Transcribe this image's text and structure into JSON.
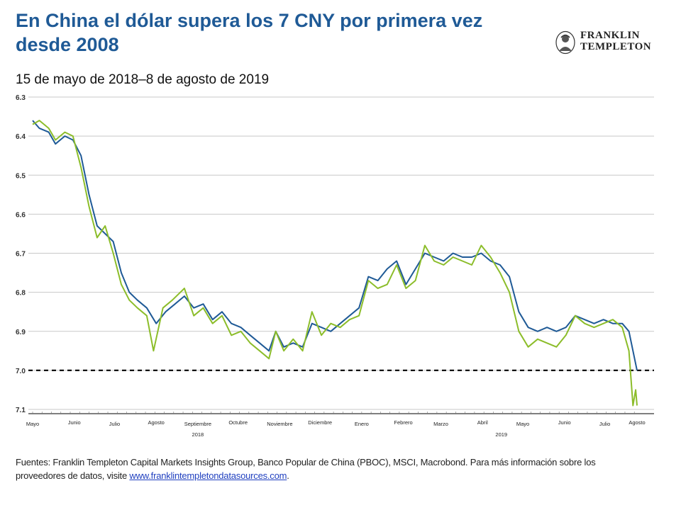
{
  "header": {
    "title": "En China el dólar supera los 7 CNY por primera vez desde 2008",
    "subtitle": "15 de mayo de 2018–8 de agosto de 2019"
  },
  "logo": {
    "line1": "FRANKLIN",
    "line2": "TEMPLETON"
  },
  "footer": {
    "text": "Fuentes: Franklin Templeton Capital Markets Insights Group, Banco Popular de China (PBOC), MSCI, Macrobond. Para más información sobre los proveedores de datos, visite",
    "link": "www.franklintempletondatasources.com",
    "end": "."
  },
  "chart_data": {
    "type": "line",
    "title": "En China el dólar supera los 7 CNY por primera vez desde 2008",
    "subtitle": "15 de mayo de 2018–8 de agosto de 2019",
    "y_inverted": true,
    "ylim": [
      6.3,
      7.1
    ],
    "yticks": [
      6.3,
      6.4,
      6.5,
      6.6,
      6.7,
      6.8,
      6.9,
      7.0,
      7.1
    ],
    "grid": true,
    "reference_line": {
      "y": 7.0,
      "style": "dashed"
    },
    "x_range": [
      "2018-05-15",
      "2019-08-08"
    ],
    "x_tick_labels": [
      {
        "label": "Mayo",
        "date": "2018-05-15"
      },
      {
        "label": "Junio",
        "date": "2018-06-15"
      },
      {
        "label": "Julio",
        "date": "2018-07-15"
      },
      {
        "label": "Agosto",
        "date": "2018-08-15"
      },
      {
        "label": "Septiembre",
        "date": "2018-09-15"
      },
      {
        "label": "Octubre",
        "date": "2018-10-15"
      },
      {
        "label": "Noviembre",
        "date": "2018-11-15"
      },
      {
        "label": "Diciembre",
        "date": "2018-12-15"
      },
      {
        "label": "Enero",
        "date": "2019-01-15"
      },
      {
        "label": "Febrero",
        "date": "2019-02-15"
      },
      {
        "label": "Marzo",
        "date": "2019-03-15"
      },
      {
        "label": "Abril",
        "date": "2019-04-15"
      },
      {
        "label": "Mayo",
        "date": "2019-05-15"
      },
      {
        "label": "Junio",
        "date": "2019-06-15"
      },
      {
        "label": "Julio",
        "date": "2019-07-15"
      },
      {
        "label": "Agosto",
        "date": "2019-08-08"
      }
    ],
    "year_labels": [
      {
        "label": "2018",
        "date": "2018-09-15"
      },
      {
        "label": "2019",
        "date": "2019-04-29"
      }
    ],
    "series": [
      {
        "color": "#1f5a96",
        "points": [
          [
            "2018-05-15",
            6.36
          ],
          [
            "2018-05-20",
            6.38
          ],
          [
            "2018-05-27",
            6.39
          ],
          [
            "2018-06-01",
            6.42
          ],
          [
            "2018-06-08",
            6.4
          ],
          [
            "2018-06-14",
            6.41
          ],
          [
            "2018-06-20",
            6.45
          ],
          [
            "2018-06-26",
            6.55
          ],
          [
            "2018-07-02",
            6.63
          ],
          [
            "2018-07-08",
            6.65
          ],
          [
            "2018-07-14",
            6.67
          ],
          [
            "2018-07-20",
            6.75
          ],
          [
            "2018-07-26",
            6.8
          ],
          [
            "2018-08-01",
            6.82
          ],
          [
            "2018-08-08",
            6.84
          ],
          [
            "2018-08-15",
            6.88
          ],
          [
            "2018-08-22",
            6.85
          ],
          [
            "2018-08-29",
            6.83
          ],
          [
            "2018-09-05",
            6.81
          ],
          [
            "2018-09-12",
            6.84
          ],
          [
            "2018-09-19",
            6.83
          ],
          [
            "2018-09-26",
            6.87
          ],
          [
            "2018-10-03",
            6.85
          ],
          [
            "2018-10-10",
            6.88
          ],
          [
            "2018-10-17",
            6.89
          ],
          [
            "2018-10-24",
            6.91
          ],
          [
            "2018-10-31",
            6.93
          ],
          [
            "2018-11-07",
            6.95
          ],
          [
            "2018-11-12",
            6.9
          ],
          [
            "2018-11-18",
            6.94
          ],
          [
            "2018-11-25",
            6.93
          ],
          [
            "2018-12-02",
            6.94
          ],
          [
            "2018-12-09",
            6.88
          ],
          [
            "2018-12-16",
            6.89
          ],
          [
            "2018-12-23",
            6.9
          ],
          [
            "2018-12-30",
            6.88
          ],
          [
            "2019-01-06",
            6.86
          ],
          [
            "2019-01-13",
            6.84
          ],
          [
            "2019-01-20",
            6.76
          ],
          [
            "2019-01-27",
            6.77
          ],
          [
            "2019-02-03",
            6.74
          ],
          [
            "2019-02-10",
            6.72
          ],
          [
            "2019-02-17",
            6.78
          ],
          [
            "2019-02-24",
            6.74
          ],
          [
            "2019-03-03",
            6.7
          ],
          [
            "2019-03-10",
            6.71
          ],
          [
            "2019-03-17",
            6.72
          ],
          [
            "2019-03-24",
            6.7
          ],
          [
            "2019-03-31",
            6.71
          ],
          [
            "2019-04-07",
            6.71
          ],
          [
            "2019-04-14",
            6.7
          ],
          [
            "2019-04-21",
            6.72
          ],
          [
            "2019-04-28",
            6.73
          ],
          [
            "2019-05-05",
            6.76
          ],
          [
            "2019-05-12",
            6.85
          ],
          [
            "2019-05-19",
            6.89
          ],
          [
            "2019-05-26",
            6.9
          ],
          [
            "2019-06-02",
            6.89
          ],
          [
            "2019-06-09",
            6.9
          ],
          [
            "2019-06-16",
            6.89
          ],
          [
            "2019-06-23",
            6.86
          ],
          [
            "2019-06-30",
            6.87
          ],
          [
            "2019-07-07",
            6.88
          ],
          [
            "2019-07-14",
            6.87
          ],
          [
            "2019-07-21",
            6.88
          ],
          [
            "2019-07-28",
            6.88
          ],
          [
            "2019-08-02",
            6.9
          ],
          [
            "2019-08-08",
            7.0
          ]
        ]
      },
      {
        "color": "#8cbd2a",
        "points": [
          [
            "2018-05-15",
            6.37
          ],
          [
            "2018-05-20",
            6.36
          ],
          [
            "2018-05-27",
            6.38
          ],
          [
            "2018-06-01",
            6.41
          ],
          [
            "2018-06-08",
            6.39
          ],
          [
            "2018-06-14",
            6.4
          ],
          [
            "2018-06-20",
            6.48
          ],
          [
            "2018-06-26",
            6.58
          ],
          [
            "2018-07-02",
            6.66
          ],
          [
            "2018-07-08",
            6.63
          ],
          [
            "2018-07-14",
            6.7
          ],
          [
            "2018-07-20",
            6.78
          ],
          [
            "2018-07-26",
            6.82
          ],
          [
            "2018-08-01",
            6.84
          ],
          [
            "2018-08-08",
            6.86
          ],
          [
            "2018-08-13",
            6.95
          ],
          [
            "2018-08-20",
            6.84
          ],
          [
            "2018-08-27",
            6.82
          ],
          [
            "2018-09-05",
            6.79
          ],
          [
            "2018-09-12",
            6.86
          ],
          [
            "2018-09-19",
            6.84
          ],
          [
            "2018-09-26",
            6.88
          ],
          [
            "2018-10-03",
            6.86
          ],
          [
            "2018-10-10",
            6.91
          ],
          [
            "2018-10-17",
            6.9
          ],
          [
            "2018-10-24",
            6.93
          ],
          [
            "2018-10-31",
            6.95
          ],
          [
            "2018-11-07",
            6.97
          ],
          [
            "2018-11-12",
            6.9
          ],
          [
            "2018-11-18",
            6.95
          ],
          [
            "2018-11-25",
            6.92
          ],
          [
            "2018-12-02",
            6.95
          ],
          [
            "2018-12-09",
            6.85
          ],
          [
            "2018-12-16",
            6.91
          ],
          [
            "2018-12-23",
            6.88
          ],
          [
            "2018-12-30",
            6.89
          ],
          [
            "2019-01-06",
            6.87
          ],
          [
            "2019-01-13",
            6.86
          ],
          [
            "2019-01-20",
            6.77
          ],
          [
            "2019-01-27",
            6.79
          ],
          [
            "2019-02-03",
            6.78
          ],
          [
            "2019-02-10",
            6.73
          ],
          [
            "2019-02-17",
            6.79
          ],
          [
            "2019-02-24",
            6.77
          ],
          [
            "2019-03-03",
            6.68
          ],
          [
            "2019-03-10",
            6.72
          ],
          [
            "2019-03-17",
            6.73
          ],
          [
            "2019-03-24",
            6.71
          ],
          [
            "2019-03-31",
            6.72
          ],
          [
            "2019-04-07",
            6.73
          ],
          [
            "2019-04-14",
            6.68
          ],
          [
            "2019-04-21",
            6.71
          ],
          [
            "2019-04-28",
            6.75
          ],
          [
            "2019-05-05",
            6.8
          ],
          [
            "2019-05-12",
            6.9
          ],
          [
            "2019-05-19",
            6.94
          ],
          [
            "2019-05-26",
            6.92
          ],
          [
            "2019-06-02",
            6.93
          ],
          [
            "2019-06-09",
            6.94
          ],
          [
            "2019-06-16",
            6.91
          ],
          [
            "2019-06-23",
            6.86
          ],
          [
            "2019-06-30",
            6.88
          ],
          [
            "2019-07-07",
            6.89
          ],
          [
            "2019-07-14",
            6.88
          ],
          [
            "2019-07-21",
            6.87
          ],
          [
            "2019-07-28",
            6.89
          ],
          [
            "2019-08-02",
            6.95
          ],
          [
            "2019-08-05",
            7.09
          ],
          [
            "2019-08-07",
            7.05
          ],
          [
            "2019-08-08",
            7.09
          ]
        ]
      }
    ]
  }
}
